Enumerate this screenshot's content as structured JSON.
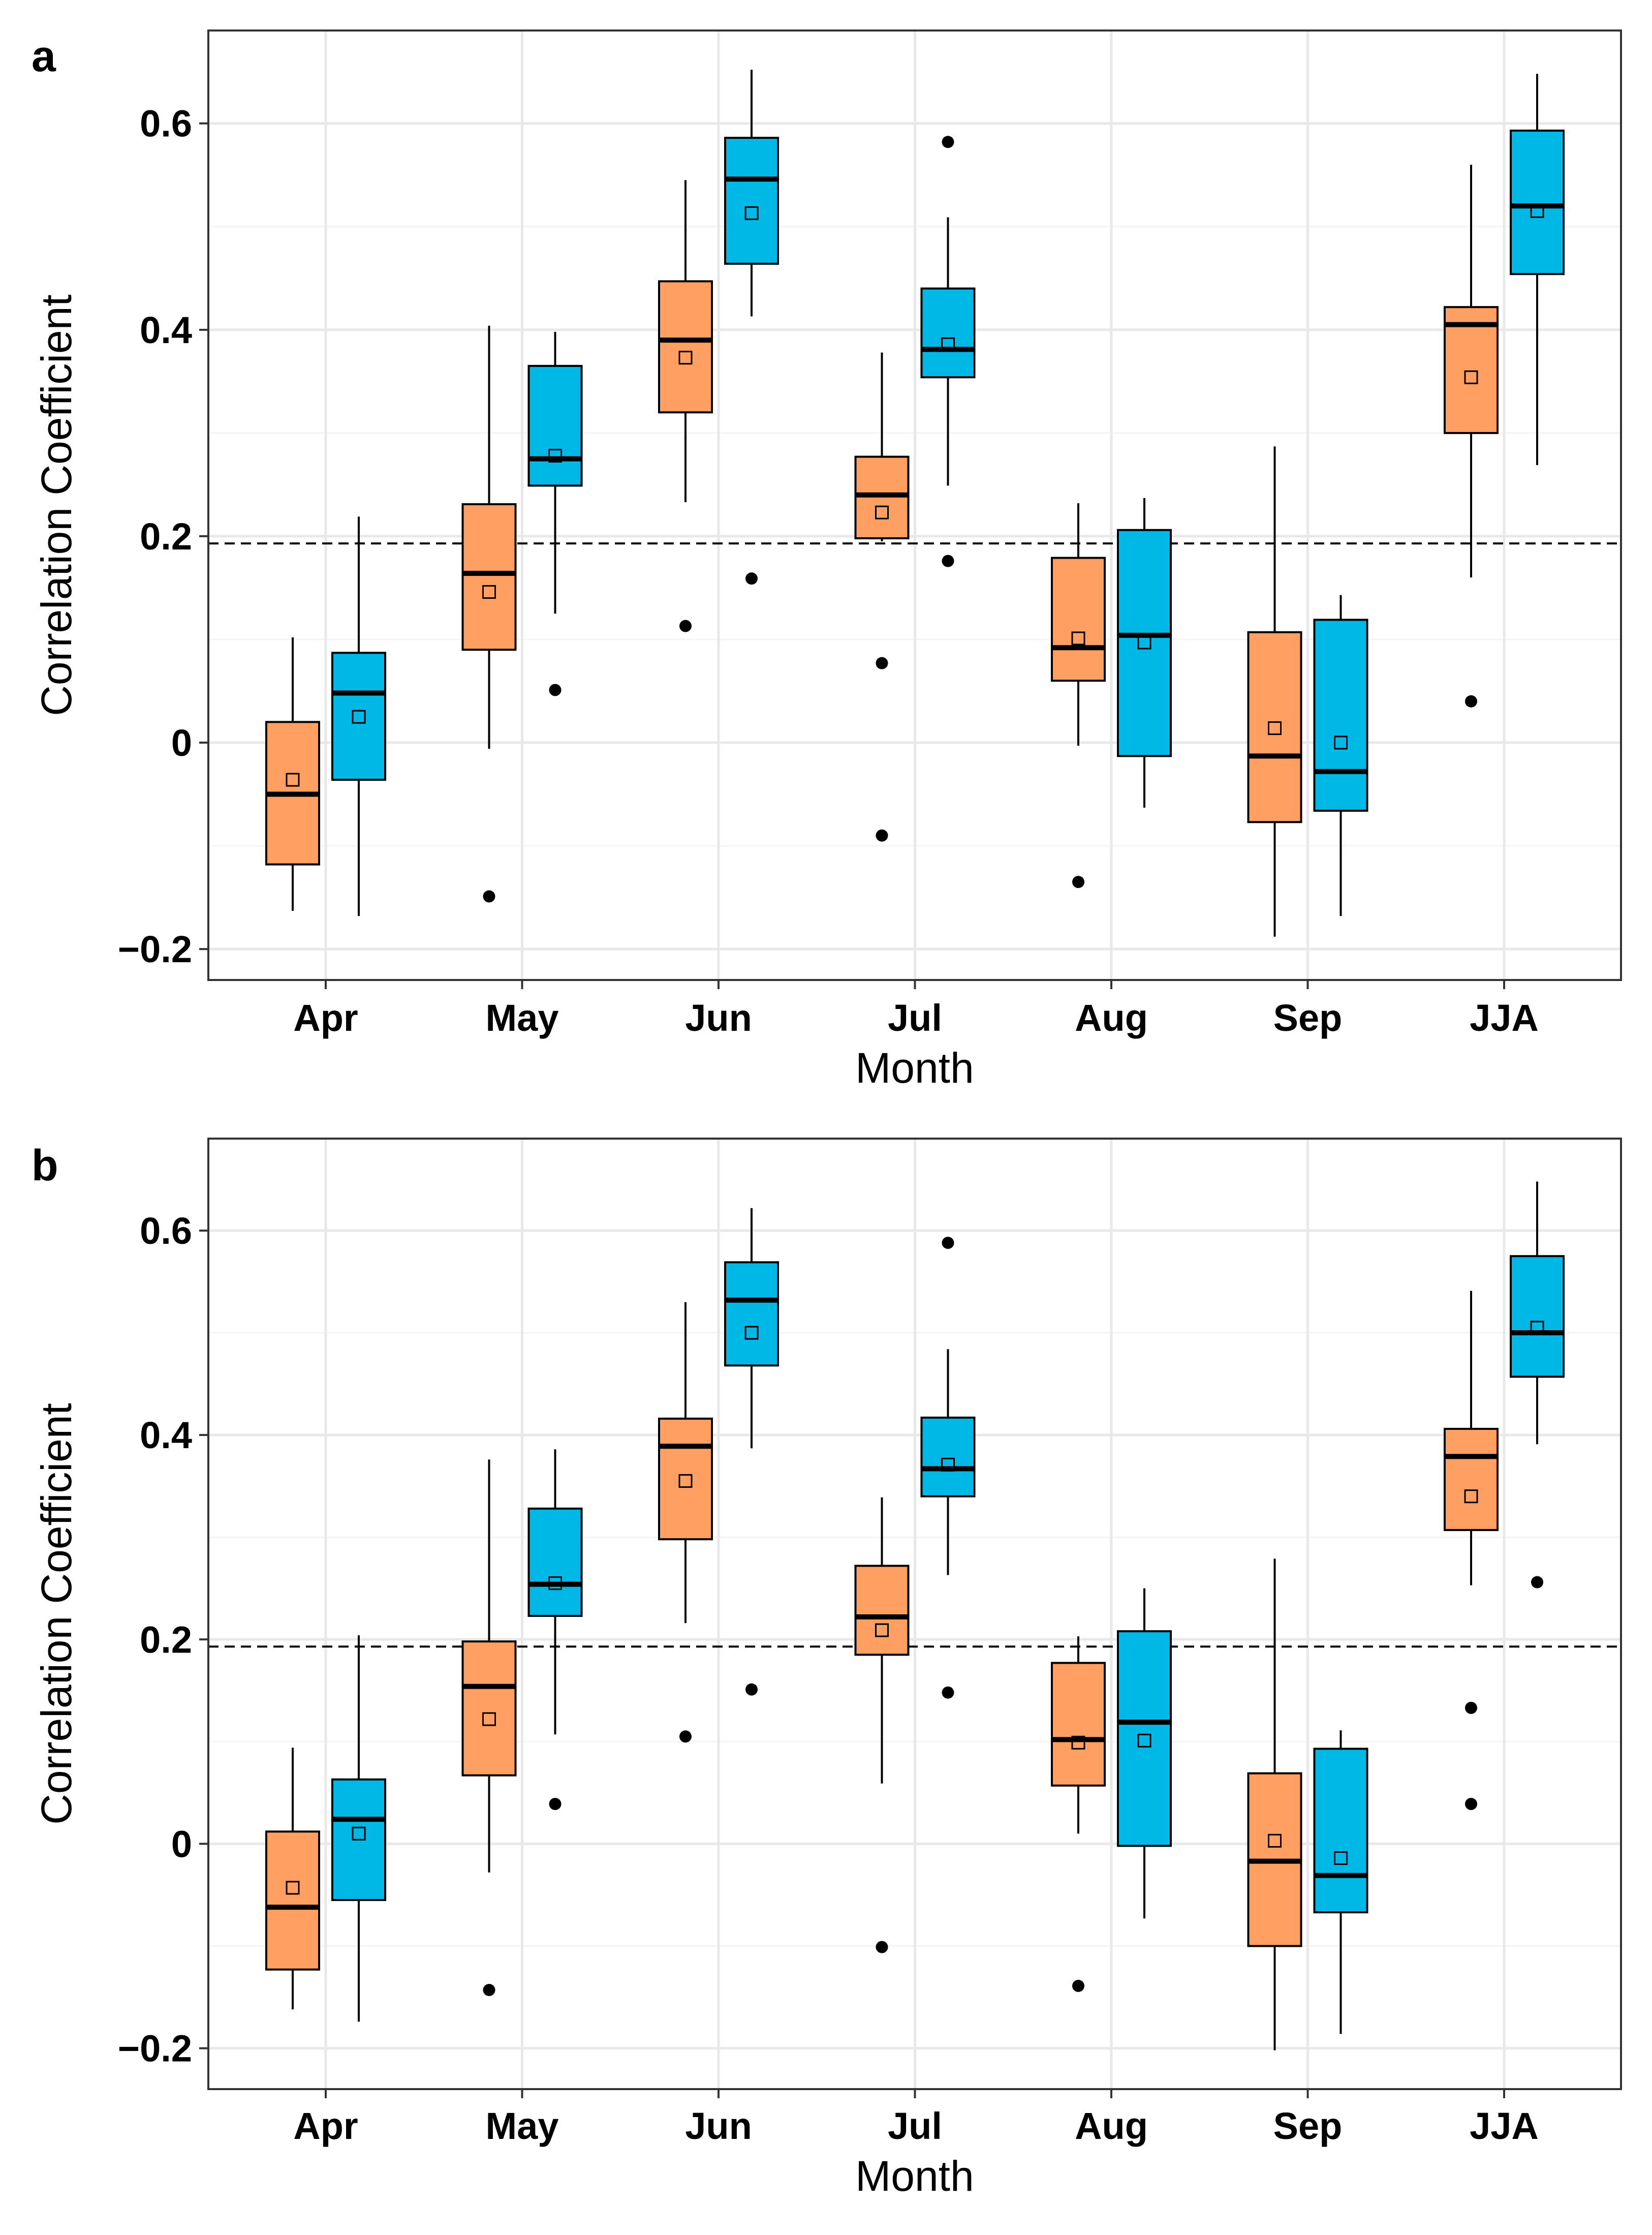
{
  "colors": {
    "orange": "#FFA062",
    "blue": "#00B8E5",
    "grid_major": "#E8E8E8",
    "grid_minor": "#F4F4F4",
    "border": "#333333"
  },
  "chart_data": [
    {
      "type": "box",
      "panel_label": "a",
      "xlabel": "Month",
      "ylabel": "Correlation Coefficient",
      "ylim": [
        -0.23,
        0.69
      ],
      "yticks": [
        -0.2,
        0,
        0.2,
        0.4,
        0.6
      ],
      "ytick_labels": [
        "−0.2",
        "0",
        "0.2",
        "0.4",
        "0.6"
      ],
      "categories": [
        "Apr",
        "May",
        "Jun",
        "Jul",
        "Aug",
        "Sep",
        "JJA"
      ],
      "threshold": 0.193,
      "series": [
        {
          "name": "orange",
          "boxes": [
            {
              "min": -0.163,
              "q1": -0.118,
              "median": -0.05,
              "q3": 0.02,
              "max": 0.102,
              "mean": -0.036,
              "outliers": []
            },
            {
              "min": -0.006,
              "q1": 0.09,
              "median": 0.164,
              "q3": 0.231,
              "max": 0.404,
              "mean": 0.146,
              "outliers": [
                -0.149
              ]
            },
            {
              "min": 0.233,
              "q1": 0.32,
              "median": 0.39,
              "q3": 0.447,
              "max": 0.545,
              "mean": 0.373,
              "outliers": [
                0.113
              ]
            },
            {
              "min": 0.195,
              "q1": 0.198,
              "median": 0.24,
              "q3": 0.277,
              "max": 0.378,
              "mean": 0.223,
              "outliers": [
                0.077,
                -0.09
              ]
            },
            {
              "min": -0.003,
              "q1": 0.06,
              "median": 0.092,
              "q3": 0.179,
              "max": 0.232,
              "mean": 0.101,
              "outliers": [
                -0.135
              ]
            },
            {
              "min": -0.188,
              "q1": -0.077,
              "median": -0.013,
              "q3": 0.107,
              "max": 0.287,
              "mean": 0.014,
              "outliers": []
            },
            {
              "min": 0.16,
              "q1": 0.3,
              "median": 0.405,
              "q3": 0.422,
              "max": 0.56,
              "mean": 0.354,
              "outliers": [
                0.04
              ]
            }
          ]
        },
        {
          "name": "blue",
          "boxes": [
            {
              "min": -0.168,
              "q1": -0.036,
              "median": 0.048,
              "q3": 0.087,
              "max": 0.219,
              "mean": 0.025,
              "outliers": []
            },
            {
              "min": 0.125,
              "q1": 0.249,
              "median": 0.275,
              "q3": 0.365,
              "max": 0.398,
              "mean": 0.278,
              "outliers": [
                0.051
              ]
            },
            {
              "min": 0.413,
              "q1": 0.464,
              "median": 0.546,
              "q3": 0.586,
              "max": 0.652,
              "mean": 0.513,
              "outliers": [
                0.159
              ]
            },
            {
              "min": 0.249,
              "q1": 0.354,
              "median": 0.381,
              "q3": 0.44,
              "max": 0.509,
              "mean": 0.386,
              "outliers": [
                0.582,
                0.176
              ]
            },
            {
              "min": -0.063,
              "q1": -0.013,
              "median": 0.104,
              "q3": 0.206,
              "max": 0.237,
              "mean": 0.097,
              "outliers": []
            },
            {
              "min": -0.168,
              "q1": -0.066,
              "median": -0.028,
              "q3": 0.119,
              "max": 0.143,
              "mean": 0.0,
              "outliers": []
            },
            {
              "min": 0.269,
              "q1": 0.454,
              "median": 0.52,
              "q3": 0.593,
              "max": 0.648,
              "mean": 0.515,
              "outliers": []
            }
          ]
        }
      ]
    },
    {
      "type": "box",
      "panel_label": "b",
      "xlabel": "Month",
      "ylabel": "Correlation Coefficient",
      "ylim": [
        -0.24,
        0.69
      ],
      "yticks": [
        -0.2,
        0,
        0.2,
        0.4,
        0.6
      ],
      "ytick_labels": [
        "−0.2",
        "0",
        "0.2",
        "0.4",
        "0.6"
      ],
      "categories": [
        "Apr",
        "May",
        "Jun",
        "Jul",
        "Aug",
        "Sep",
        "JJA"
      ],
      "threshold": 0.193,
      "series": [
        {
          "name": "orange",
          "boxes": [
            {
              "min": -0.162,
              "q1": -0.123,
              "median": -0.062,
              "q3": 0.012,
              "max": 0.094,
              "mean": -0.043,
              "outliers": []
            },
            {
              "min": -0.028,
              "q1": 0.067,
              "median": 0.154,
              "q3": 0.198,
              "max": 0.376,
              "mean": 0.122,
              "outliers": [
                -0.143
              ]
            },
            {
              "min": 0.216,
              "q1": 0.298,
              "median": 0.389,
              "q3": 0.416,
              "max": 0.53,
              "mean": 0.355,
              "outliers": [
                0.105
              ]
            },
            {
              "min": 0.059,
              "q1": 0.185,
              "median": 0.222,
              "q3": 0.272,
              "max": 0.339,
              "mean": 0.209,
              "outliers": [
                -0.101
              ]
            },
            {
              "min": 0.01,
              "q1": 0.057,
              "median": 0.102,
              "q3": 0.177,
              "max": 0.203,
              "mean": 0.099,
              "outliers": [
                -0.139
              ]
            },
            {
              "min": -0.202,
              "q1": -0.1,
              "median": -0.017,
              "q3": 0.069,
              "max": 0.279,
              "mean": 0.003,
              "outliers": []
            },
            {
              "min": 0.253,
              "q1": 0.307,
              "median": 0.379,
              "q3": 0.406,
              "max": 0.541,
              "mean": 0.34,
              "outliers": [
                0.133,
                0.039
              ]
            }
          ]
        },
        {
          "name": "blue",
          "boxes": [
            {
              "min": -0.174,
              "q1": -0.055,
              "median": 0.024,
              "q3": 0.063,
              "max": 0.204,
              "mean": 0.01,
              "outliers": []
            },
            {
              "min": 0.107,
              "q1": 0.223,
              "median": 0.254,
              "q3": 0.328,
              "max": 0.386,
              "mean": 0.255,
              "outliers": [
                0.039
              ]
            },
            {
              "min": 0.387,
              "q1": 0.468,
              "median": 0.532,
              "q3": 0.569,
              "max": 0.622,
              "mean": 0.5,
              "outliers": [
                0.151
              ]
            },
            {
              "min": 0.263,
              "q1": 0.34,
              "median": 0.367,
              "q3": 0.417,
              "max": 0.484,
              "mean": 0.371,
              "outliers": [
                0.588,
                0.148
              ]
            },
            {
              "min": -0.073,
              "q1": -0.002,
              "median": 0.119,
              "q3": 0.208,
              "max": 0.25,
              "mean": 0.101,
              "outliers": []
            },
            {
              "min": -0.186,
              "q1": -0.067,
              "median": -0.031,
              "q3": 0.093,
              "max": 0.111,
              "mean": -0.014,
              "outliers": []
            },
            {
              "min": 0.391,
              "q1": 0.457,
              "median": 0.5,
              "q3": 0.575,
              "max": 0.648,
              "mean": 0.505,
              "outliers": [
                0.256
              ]
            }
          ]
        }
      ]
    }
  ]
}
